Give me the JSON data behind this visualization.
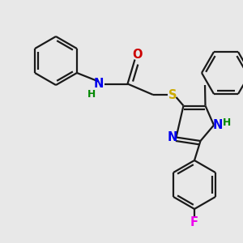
{
  "background_color": "#e8e8e8",
  "bond_color": "#1a1a1a",
  "atom_colors": {
    "N": "#0000ee",
    "O": "#cc0000",
    "S": "#ccaa00",
    "F": "#ee00ee",
    "H": "#008800",
    "C": "#1a1a1a"
  },
  "font_size": 10.5,
  "fig_size": [
    3.0,
    3.0
  ],
  "dpi": 100,
  "lw": 1.6
}
